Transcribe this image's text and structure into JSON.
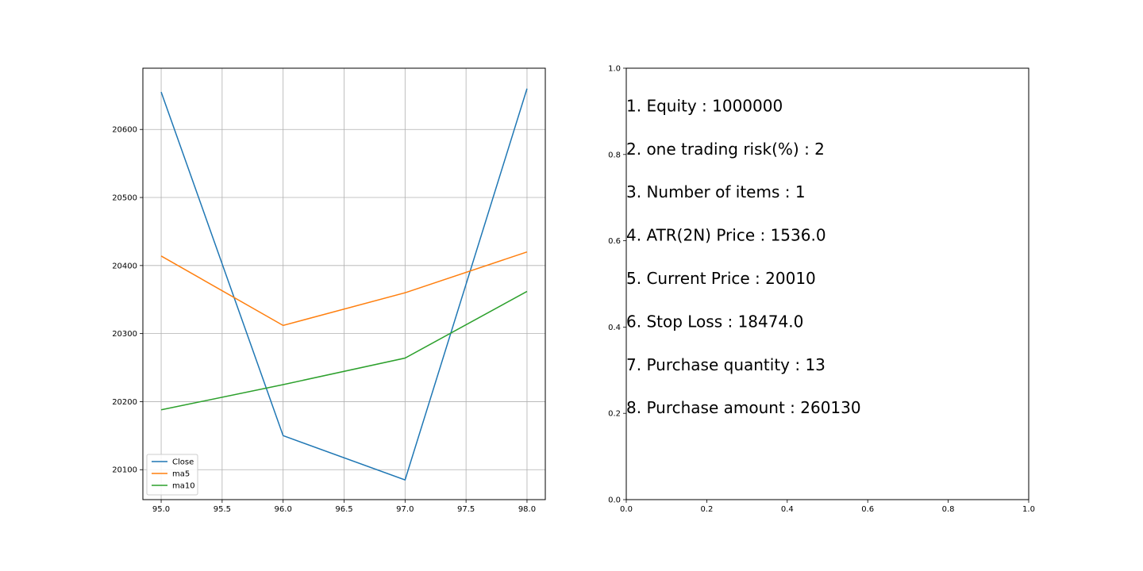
{
  "chart_data": [
    {
      "type": "line",
      "x": [
        95.0,
        96.0,
        97.0,
        98.0
      ],
      "xlim": [
        94.85,
        98.15
      ],
      "ylim": [
        20056,
        20690
      ],
      "xticks": [
        "95.0",
        "95.5",
        "96.0",
        "96.5",
        "97.0",
        "97.5",
        "98.0"
      ],
      "xtick_values": [
        95.0,
        95.5,
        96.0,
        96.5,
        97.0,
        97.5,
        98.0
      ],
      "yticks": [
        "20100",
        "20200",
        "20300",
        "20400",
        "20500",
        "20600"
      ],
      "ytick_values": [
        20100,
        20200,
        20300,
        20400,
        20500,
        20600
      ],
      "grid": true,
      "legend_position": "lower-left",
      "series": [
        {
          "name": "Close",
          "color": "#1f77b4",
          "values": [
            20655,
            20150,
            20085,
            20660
          ]
        },
        {
          "name": "ma5",
          "color": "#ff7f0e",
          "values": [
            20414,
            20312,
            20360,
            20420
          ]
        },
        {
          "name": "ma10",
          "color": "#2ca02c",
          "values": [
            20188,
            20225,
            20264,
            20362
          ]
        }
      ]
    },
    {
      "type": "text-panel",
      "xlim": [
        0.0,
        1.0
      ],
      "ylim": [
        0.0,
        1.0
      ],
      "xticks": [
        "0.0",
        "0.2",
        "0.4",
        "0.6",
        "0.8",
        "1.0"
      ],
      "xtick_values": [
        0.0,
        0.2,
        0.4,
        0.6,
        0.8,
        1.0
      ],
      "yticks": [
        "0.0",
        "0.2",
        "0.4",
        "0.6",
        "0.8",
        "1.0"
      ],
      "ytick_values": [
        0.0,
        0.2,
        0.4,
        0.6,
        0.8,
        1.0
      ],
      "grid": false,
      "annotations": [
        {
          "text": "1. Equity : 1000000",
          "x": 0.0,
          "y": 0.9
        },
        {
          "text": "2. one trading risk(%) : 2",
          "x": 0.0,
          "y": 0.8
        },
        {
          "text": "3. Number of items : 1",
          "x": 0.0,
          "y": 0.7
        },
        {
          "text": "4. ATR(2N) Price : 1536.0",
          "x": 0.0,
          "y": 0.6
        },
        {
          "text": "5. Current Price : 20010",
          "x": 0.0,
          "y": 0.5
        },
        {
          "text": "6. Stop Loss : 18474.0",
          "x": 0.0,
          "y": 0.4
        },
        {
          "text": "7. Purchase quantity : 13",
          "x": 0.0,
          "y": 0.3
        },
        {
          "text": "8. Purchase amount : 260130",
          "x": 0.0,
          "y": 0.2
        }
      ]
    }
  ]
}
